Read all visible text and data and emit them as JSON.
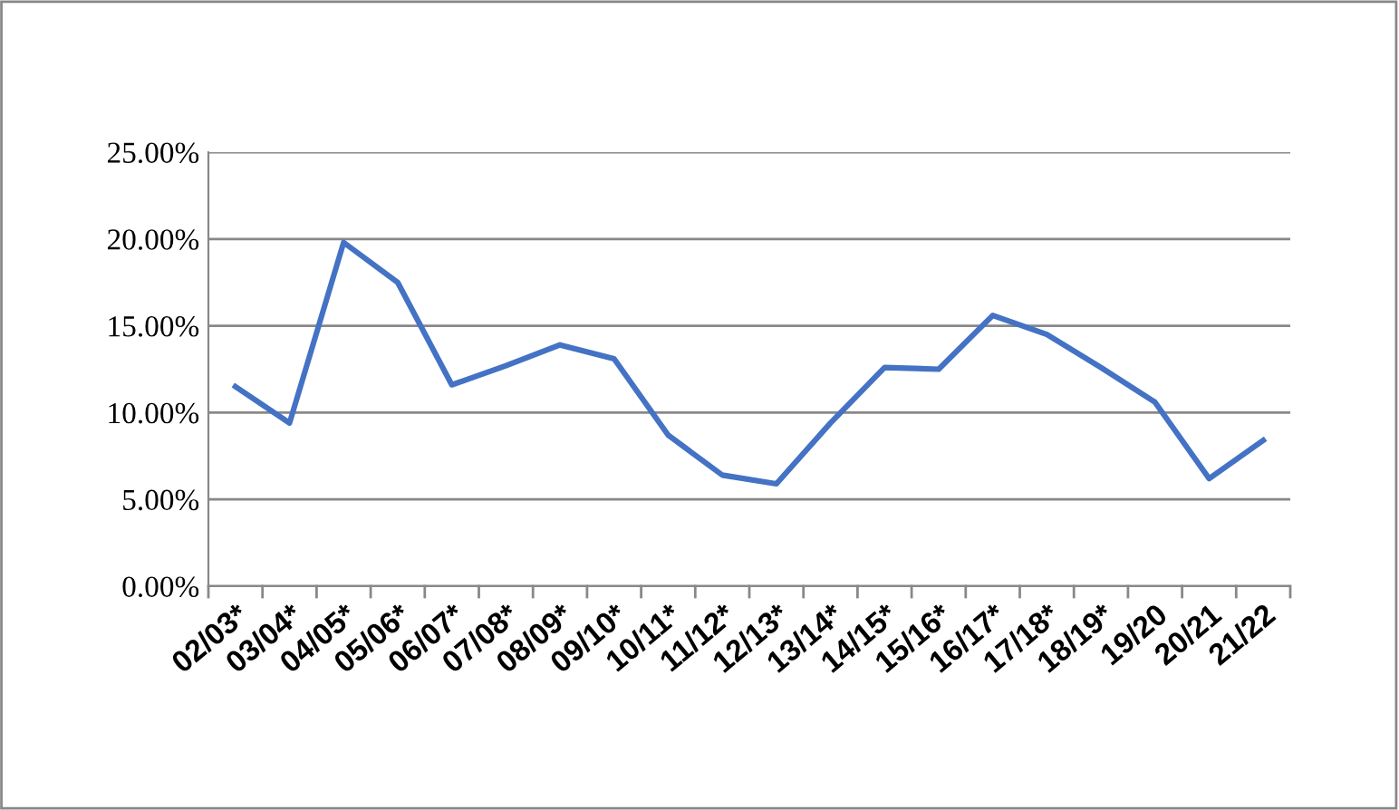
{
  "chart_data": {
    "type": "line",
    "categories": [
      "02/03*",
      "03/04*",
      "04/05*",
      "05/06*",
      "06/07*",
      "07/08*",
      "08/09*",
      "09/10*",
      "10/11*",
      "11/12*",
      "12/13*",
      "13/14*",
      "14/15*",
      "15/16*",
      "16/17*",
      "17/18*",
      "18/19*",
      "19/20",
      "20/21",
      "21/22"
    ],
    "series": [
      {
        "color": "#4472c4",
        "values": [
          11.5,
          9.4,
          19.8,
          17.5,
          11.6,
          12.7,
          13.9,
          13.1,
          8.7,
          6.4,
          5.9,
          9.4,
          12.6,
          12.5,
          15.6,
          14.5,
          12.6,
          10.6,
          6.2,
          8.4
        ]
      }
    ],
    "ylim": [
      0,
      25
    ],
    "yticks": [
      {
        "value": 0,
        "label": "0.00%"
      },
      {
        "value": 5,
        "label": "5.00%"
      },
      {
        "value": 10,
        "label": "10.00%"
      },
      {
        "value": 15,
        "label": "15.00%"
      },
      {
        "value": 20,
        "label": "20.00%"
      },
      {
        "value": 25,
        "label": "25.00%"
      }
    ],
    "grid": "y",
    "legend": false,
    "marker": "none",
    "line_style": "solid"
  }
}
